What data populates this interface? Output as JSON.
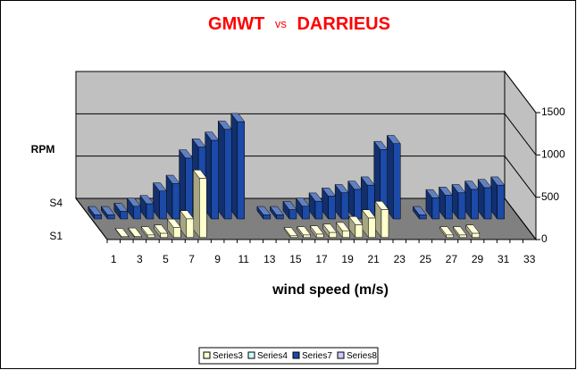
{
  "chart_data": {
    "type": "bar3d",
    "title": [
      "GMWT",
      "vs",
      "DARRIEUS"
    ],
    "y_label": "RPM",
    "x_label": "wind speed (m/s)",
    "depth_labels": [
      "S1",
      "S4"
    ],
    "categories": [
      1,
      null,
      3,
      null,
      5,
      null,
      7,
      null,
      9,
      null,
      11,
      null,
      13,
      null,
      15,
      null,
      17,
      null,
      19,
      null,
      21,
      null,
      23,
      null,
      25,
      null,
      27,
      null,
      29,
      null,
      31,
      null,
      33
    ],
    "ylim": [
      0,
      1500
    ],
    "yticks": [
      0,
      500,
      1000,
      1500
    ],
    "grid": true,
    "legend": "bottom",
    "series": [
      {
        "name": "Series3",
        "color": "#ffffcc",
        "values": [
          null,
          10,
          15,
          30,
          50,
          120,
          220,
          700,
          null,
          null,
          null,
          null,
          null,
          null,
          20,
          30,
          40,
          60,
          80,
          150,
          230,
          330,
          null,
          null,
          null,
          null,
          30,
          30,
          50,
          null,
          null,
          null,
          null
        ]
      },
      {
        "name": "Series4",
        "color": "#ccffff",
        "values": [
          null,
          null,
          null,
          null,
          null,
          null,
          null,
          null,
          null,
          null,
          null,
          null,
          null,
          null,
          null,
          null,
          null,
          null,
          null,
          null,
          null,
          null,
          null,
          null,
          null,
          null,
          null,
          null,
          null,
          null,
          null,
          null,
          null
        ]
      },
      {
        "name": "Series7",
        "color": "#1c4aa8",
        "values": [
          50,
          50,
          90,
          150,
          180,
          330,
          420,
          720,
          850,
          930,
          1060,
          1150,
          null,
          50,
          50,
          110,
          150,
          210,
          270,
          310,
          350,
          400,
          820,
          890,
          null,
          50,
          250,
          280,
          310,
          350,
          370,
          400,
          null
        ]
      },
      {
        "name": "Series8",
        "color": "#ccccff",
        "values": [
          null,
          null,
          null,
          null,
          null,
          null,
          null,
          null,
          null,
          null,
          null,
          null,
          null,
          null,
          null,
          null,
          null,
          null,
          null,
          null,
          null,
          null,
          null,
          null,
          null,
          null,
          null,
          null,
          null,
          null,
          null,
          null,
          null
        ]
      }
    ]
  }
}
